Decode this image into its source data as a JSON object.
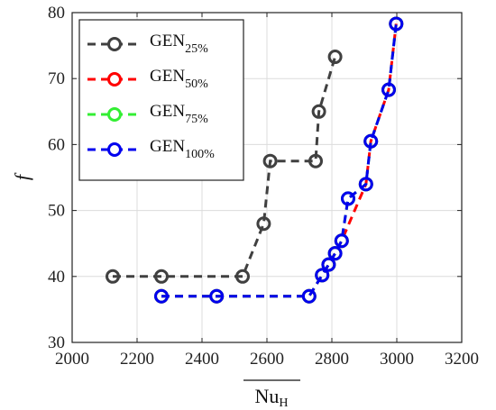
{
  "chart_data": {
    "type": "line",
    "title": "",
    "xlabel": "Nu",
    "xlabel_sub": "H",
    "xlabel_overline": true,
    "ylabel": "f",
    "xlim": [
      2000,
      3200
    ],
    "ylim": [
      30,
      80
    ],
    "xticks": [
      2000,
      2200,
      2400,
      2600,
      2800,
      3000,
      3200
    ],
    "yticks": [
      30,
      40,
      50,
      60,
      70,
      80
    ],
    "xtick_labels": [
      "2000",
      "2200",
      "2400",
      "2600",
      "2800",
      "3000",
      "3200"
    ],
    "ytick_labels": [
      "30",
      "40",
      "50",
      "60",
      "70",
      "80"
    ],
    "grid": true,
    "legend_position": "top-left",
    "series": [
      {
        "name": "GEN",
        "name_sub": "25%",
        "color": "#404040",
        "line_style": "dashed",
        "marker": "open-circle",
        "x": [
          2125,
          2275,
          2525,
          2590,
          2610,
          2750,
          2760,
          2810
        ],
        "y": [
          40,
          40,
          40,
          48,
          57.5,
          57.5,
          65,
          73.3
        ]
      },
      {
        "name": "GEN",
        "name_sub": "50%",
        "color": "#ff0000",
        "line_style": "dashed",
        "marker": "open-circle",
        "x": [
          2275,
          2445,
          2730,
          2770,
          2790,
          2810,
          2830,
          2905,
          2920,
          2975,
          2998
        ],
        "y": [
          37,
          37,
          37,
          40.2,
          41.8,
          43.5,
          45.4,
          54,
          60.5,
          68.3,
          78.3
        ]
      },
      {
        "name": "GEN",
        "name_sub": "75%",
        "color": "#33ee33",
        "line_style": "dashed",
        "marker": "open-circle",
        "x": [
          2275,
          2445,
          2730,
          2770,
          2790,
          2810,
          2830,
          2850,
          2905,
          2920,
          2975,
          2998
        ],
        "y": [
          37,
          37,
          37,
          40.2,
          41.8,
          43.5,
          45.4,
          51.8,
          54,
          60.5,
          68.3,
          78.3
        ]
      },
      {
        "name": "GEN",
        "name_sub": "100%",
        "color": "#0000ee",
        "line_style": "dashed",
        "marker": "open-circle",
        "x": [
          2275,
          2445,
          2730,
          2770,
          2790,
          2810,
          2830,
          2850,
          2905,
          2920,
          2975,
          2998
        ],
        "y": [
          37,
          37,
          37,
          40.2,
          41.8,
          43.5,
          45.4,
          51.8,
          54,
          60.5,
          68.3,
          78.3
        ]
      }
    ]
  }
}
